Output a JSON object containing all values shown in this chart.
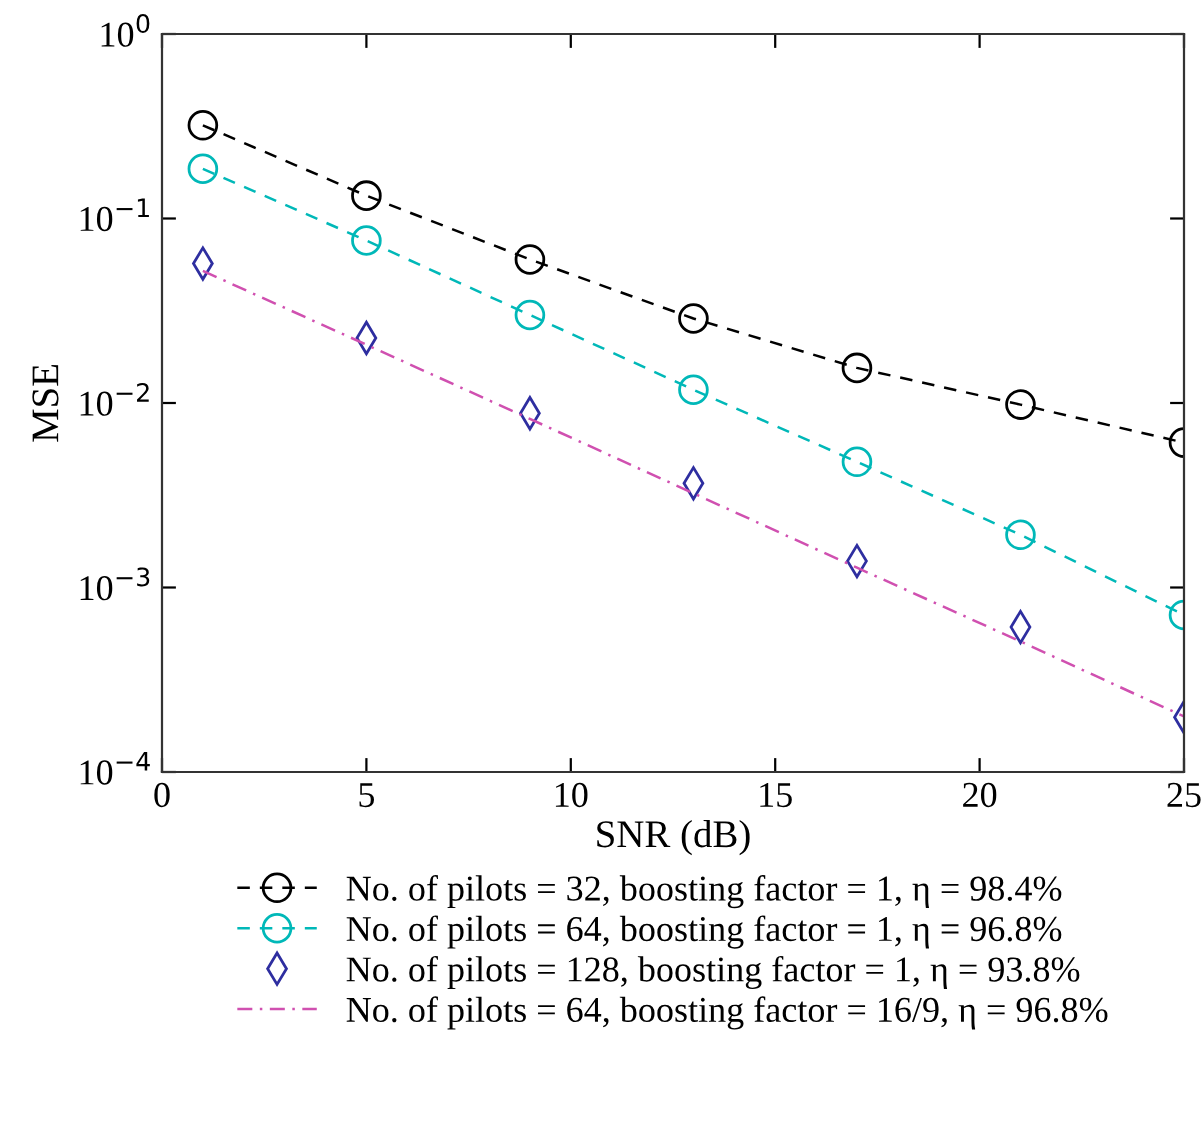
{
  "chart_data": {
    "type": "line",
    "xlabel": "SNR (dB)",
    "ylabel": "MSE",
    "log": "y",
    "xlim": [
      0,
      25
    ],
    "xticks": [
      0,
      5,
      10,
      15,
      20,
      25
    ],
    "ylim": [
      0.0001,
      1
    ],
    "yticks": [
      {
        "value": 0.0001,
        "label": "10$^{−4}$"
      },
      {
        "value": 0.001,
        "label": "10$^{−3}$"
      },
      {
        "value": 0.01,
        "label": "10$^{−2}$"
      },
      {
        "value": 0.1,
        "label": "10$^{−1}$"
      },
      {
        "value": 1,
        "label": "10$^{0}$"
      }
    ],
    "x": [
      1,
      5,
      9,
      13,
      17,
      21,
      25
    ],
    "grid": false,
    "legend": "bottom",
    "series": [
      {
        "name": "No. of pilots = 32, boosting factor = 1, η = 98.4%",
        "color": "#000000",
        "marker": "circle",
        "line_style": "dashed",
        "values": [
          0.32,
          0.133,
          0.06,
          0.0287,
          0.0155,
          0.0098,
          0.0061
        ]
      },
      {
        "name": "No. of pilots = 64, boosting factor = 1, η = 96.8%",
        "color": "#00b8b8",
        "marker": "circle",
        "line_style": "dashed",
        "values": [
          0.186,
          0.076,
          0.03,
          0.0118,
          0.0048,
          0.00193,
          0.00071
        ]
      },
      {
        "name": "No. of pilots = 128, boosting factor = 1, η = 93.8%",
        "type": "scatter",
        "color": "#2e2ea0",
        "marker": "diamond",
        "values": [
          0.057,
          0.0225,
          0.0088,
          0.00367,
          0.00139,
          0.00061,
          0.000198
        ]
      },
      {
        "name": "No. of pilots = 64, boosting factor = 16/9, η = 96.8%",
        "color": "#d050b0",
        "marker": "none",
        "line_style": "dashdot",
        "values": [
          0.052,
          0.0207,
          0.0082,
          0.00324,
          0.00128,
          0.00051,
          0.0002
        ]
      }
    ]
  }
}
